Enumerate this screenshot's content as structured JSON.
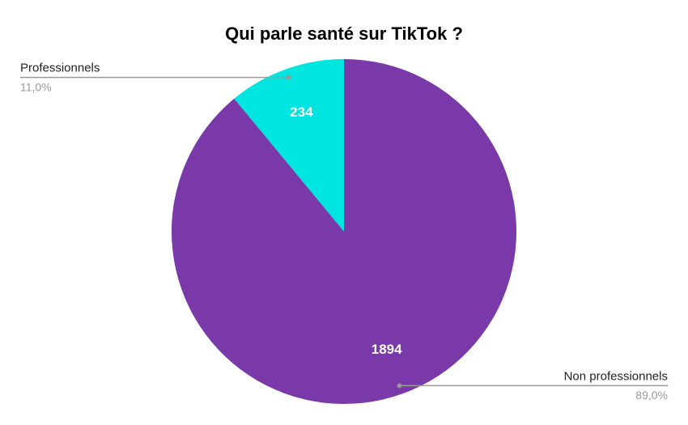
{
  "chart_data": {
    "type": "pie",
    "title": "Qui parle santé sur TikTok ?",
    "categories": [
      "Professionnels",
      "Non professionnels"
    ],
    "values": [
      234,
      1894
    ],
    "percent_labels": [
      "11,0%",
      "89,0%"
    ],
    "colors": [
      "#00e5e0",
      "#7a39a9"
    ]
  }
}
